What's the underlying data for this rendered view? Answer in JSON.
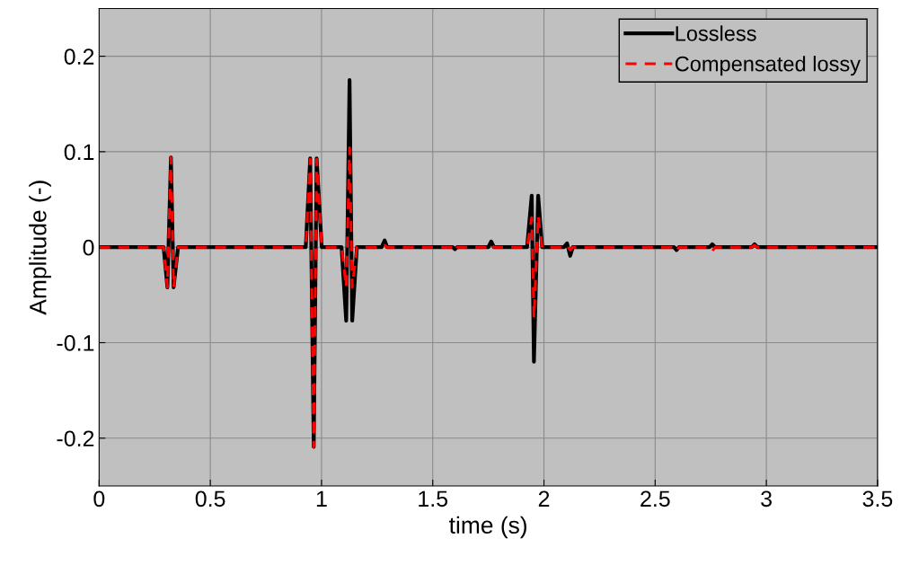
{
  "chart_data": {
    "type": "line",
    "xlabel": "time (s)",
    "ylabel": "Amplitude (-)",
    "xlim": [
      0,
      3.5
    ],
    "ylim": [
      -0.25,
      0.25
    ],
    "xticks": [
      0,
      0.5,
      1,
      1.5,
      2,
      2.5,
      3,
      3.5
    ],
    "yticks": [
      -0.2,
      -0.1,
      0,
      0.1,
      0.2
    ],
    "grid": true,
    "legend": "top right",
    "series": [
      {
        "name": "Lossless",
        "color": "#000000",
        "line_style": "solid",
        "x": [
          0,
          0.29,
          0.307,
          0.323,
          0.335,
          0.355,
          0.929,
          0.949,
          0.965,
          0.978,
          1.001,
          1.09,
          1.111,
          1.126,
          1.138,
          1.159,
          1.27,
          1.284,
          1.295,
          1.59,
          1.6,
          1.61,
          1.75,
          1.763,
          1.775,
          1.924,
          1.945,
          1.955,
          1.974,
          1.992,
          2.09,
          2.104,
          2.118,
          2.13,
          2.585,
          2.596,
          2.607,
          2.745,
          2.757,
          2.77,
          2.935,
          2.947,
          2.96,
          3.5
        ],
        "values": [
          0,
          0,
          -0.042,
          0.094,
          -0.042,
          0,
          0,
          0.093,
          -0.209,
          0.093,
          0,
          0,
          -0.077,
          0.175,
          -0.077,
          0,
          0,
          0.007,
          0,
          0,
          -0.002,
          0,
          0,
          0.006,
          0,
          0,
          0.054,
          -0.12,
          0.054,
          0,
          0,
          0.004,
          -0.009,
          0,
          0,
          -0.003,
          0,
          0,
          0.003,
          0,
          0,
          0.003,
          0,
          0
        ]
      },
      {
        "name": "Compensated lossy",
        "color": "#ff0000",
        "line_style": "dashed",
        "x": [
          0,
          0.29,
          0.307,
          0.323,
          0.335,
          0.355,
          0.929,
          0.949,
          0.965,
          0.978,
          1.001,
          1.09,
          1.111,
          1.126,
          1.138,
          1.159,
          1.27,
          1.284,
          1.295,
          1.59,
          1.6,
          1.61,
          1.75,
          1.763,
          1.775,
          1.924,
          1.945,
          1.955,
          1.974,
          1.992,
          2.09,
          2.104,
          2.118,
          2.13,
          2.585,
          2.596,
          2.607,
          2.745,
          2.757,
          2.77,
          2.935,
          2.947,
          2.96,
          3.5
        ],
        "values": [
          0,
          0,
          -0.042,
          0.094,
          -0.042,
          0,
          0,
          0.092,
          -0.209,
          0.092,
          0,
          0,
          -0.042,
          0.104,
          -0.042,
          0,
          0,
          0.002,
          0,
          0,
          -0.004,
          0,
          0,
          0.003,
          0,
          0,
          0.031,
          -0.074,
          0.033,
          0,
          0,
          0.002,
          -0.003,
          0,
          0,
          -0.004,
          0,
          0,
          -0.004,
          0,
          0,
          0.002,
          0,
          0
        ]
      }
    ]
  }
}
